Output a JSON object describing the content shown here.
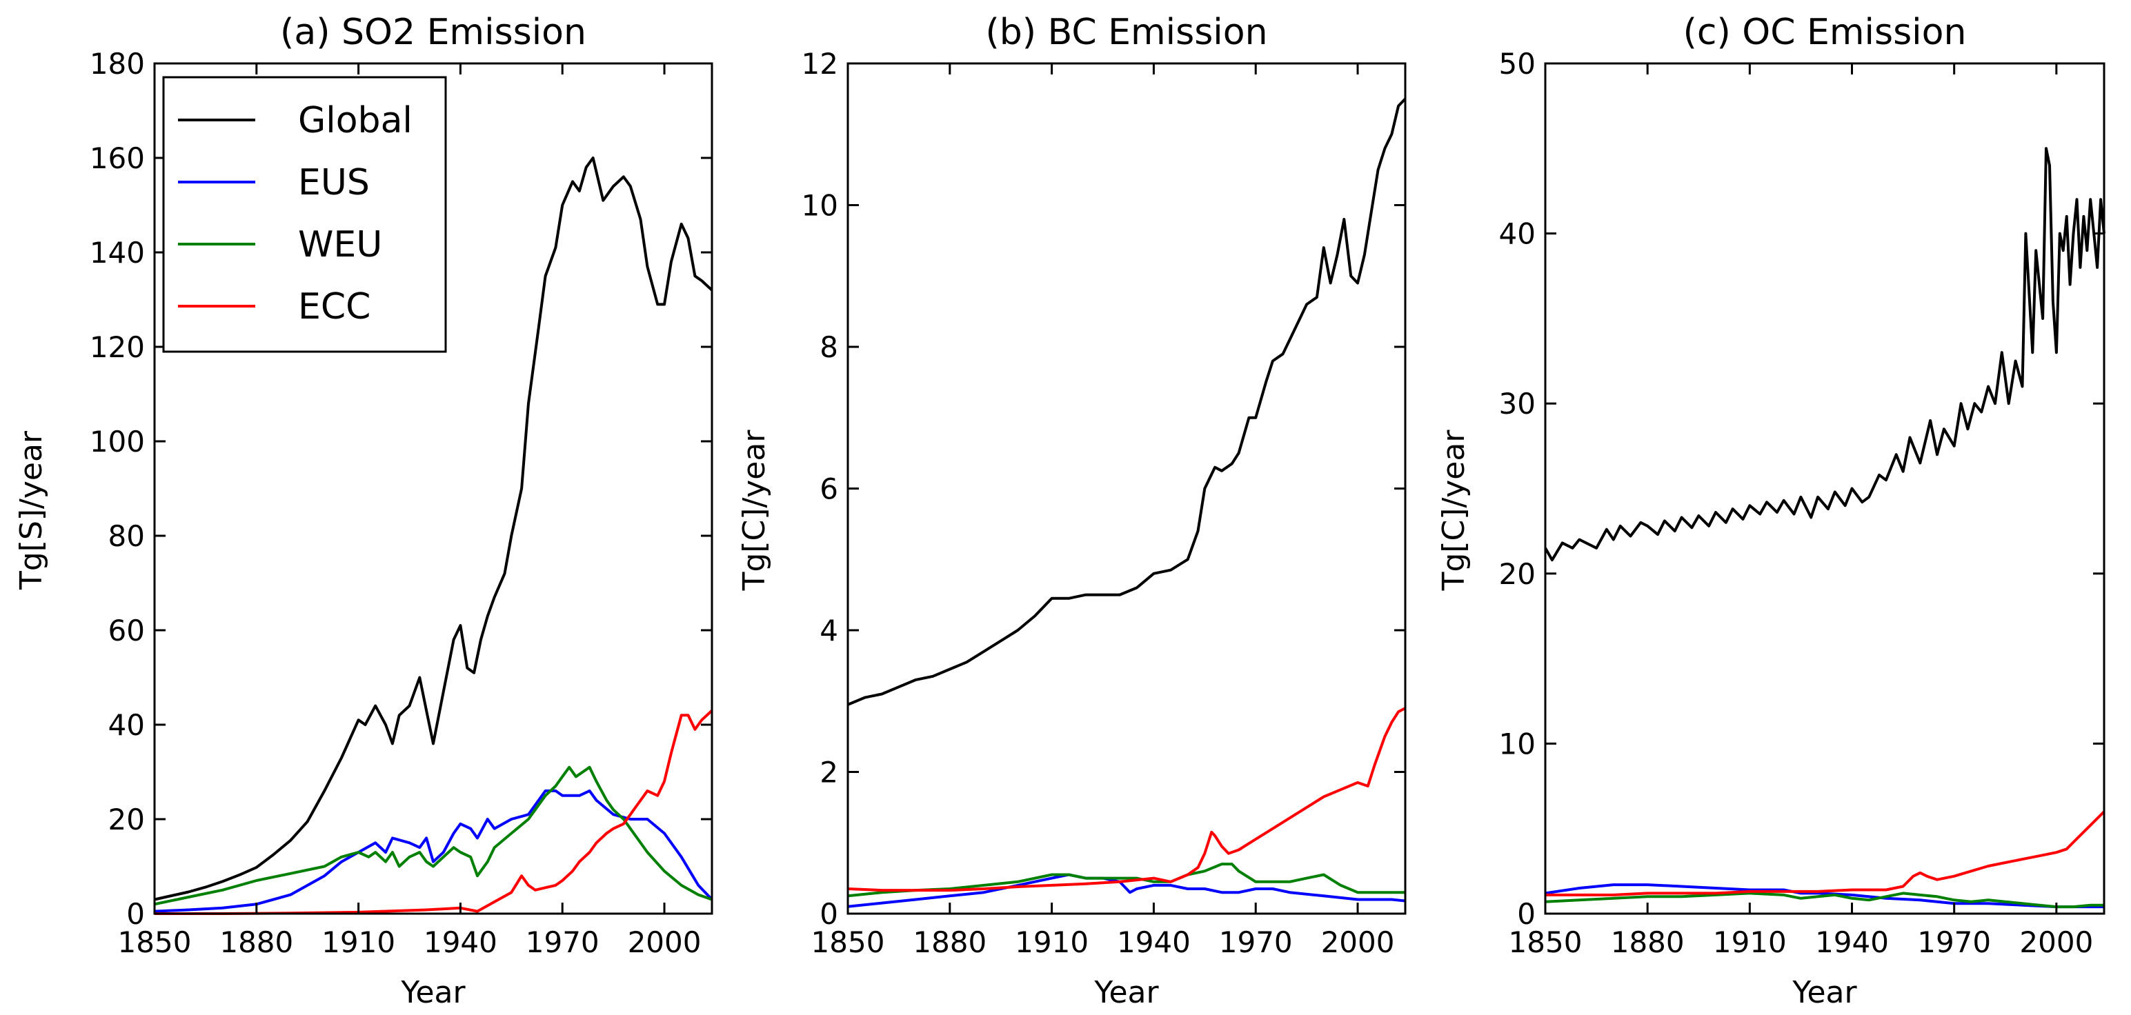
{
  "chart_data": [
    {
      "type": "line",
      "title": "(a) SO2 Emission",
      "xlabel": "Year",
      "ylabel": "Tg[S]/year",
      "xlim": [
        1850,
        2014
      ],
      "ylim": [
        0,
        180
      ],
      "xticks": [
        1850,
        1880,
        1910,
        1940,
        1970,
        2000
      ],
      "yticks": [
        0,
        20,
        40,
        60,
        80,
        100,
        120,
        140,
        160,
        180
      ],
      "grid": false,
      "legend": "top-left",
      "series": [
        {
          "name": "Global",
          "color": "#000000",
          "x": [
            1850,
            1855,
            1860,
            1865,
            1870,
            1875,
            1880,
            1885,
            1890,
            1895,
            1900,
            1905,
            1910,
            1912,
            1915,
            1918,
            1920,
            1922,
            1925,
            1928,
            1930,
            1932,
            1935,
            1938,
            1940,
            1942,
            1944,
            1946,
            1948,
            1950,
            1953,
            1955,
            1958,
            1960,
            1963,
            1965,
            1968,
            1970,
            1973,
            1975,
            1977,
            1979,
            1980,
            1982,
            1985,
            1988,
            1990,
            1993,
            1995,
            1998,
            2000,
            2002,
            2005,
            2007,
            2009,
            2011,
            2014
          ],
          "y": [
            3,
            3.8,
            4.6,
            5.6,
            6.8,
            8.2,
            9.8,
            12.5,
            15.5,
            19.5,
            26,
            33,
            41,
            40,
            44,
            40,
            36,
            42,
            44,
            50,
            43,
            36,
            47,
            58,
            61,
            52,
            51,
            58,
            63,
            67,
            72,
            80,
            90,
            108,
            124,
            135,
            141,
            150,
            155,
            153,
            158,
            160,
            157,
            151,
            154,
            156,
            154,
            147,
            137,
            129,
            129,
            138,
            146,
            143,
            135,
            134,
            132
          ]
        },
        {
          "name": "EUS",
          "color": "#0000ff",
          "x": [
            1850,
            1860,
            1870,
            1880,
            1890,
            1900,
            1905,
            1910,
            1915,
            1918,
            1920,
            1925,
            1928,
            1930,
            1932,
            1935,
            1938,
            1940,
            1943,
            1945,
            1948,
            1950,
            1955,
            1960,
            1965,
            1968,
            1970,
            1973,
            1975,
            1978,
            1980,
            1985,
            1990,
            1995,
            2000,
            2005,
            2010,
            2014
          ],
          "y": [
            0.5,
            0.8,
            1.2,
            2,
            4,
            8,
            11,
            13,
            15,
            13,
            16,
            15,
            14,
            16,
            11,
            13,
            17,
            19,
            18,
            16,
            20,
            18,
            20,
            21,
            26,
            26,
            25,
            25,
            25,
            26,
            24,
            21,
            20,
            20,
            17,
            12,
            6,
            3
          ]
        },
        {
          "name": "WEU",
          "color": "#008000",
          "x": [
            1850,
            1860,
            1870,
            1880,
            1890,
            1900,
            1905,
            1910,
            1913,
            1915,
            1918,
            1920,
            1922,
            1925,
            1928,
            1930,
            1932,
            1935,
            1938,
            1940,
            1943,
            1945,
            1948,
            1950,
            1955,
            1960,
            1965,
            1968,
            1970,
            1972,
            1974,
            1976,
            1978,
            1980,
            1983,
            1985,
            1988,
            1990,
            1995,
            2000,
            2005,
            2010,
            2014
          ],
          "y": [
            2,
            3.5,
            5,
            7,
            8.5,
            10,
            12,
            13,
            12,
            13,
            11,
            13,
            10,
            12,
            13,
            11,
            10,
            12,
            14,
            13,
            12,
            8,
            11,
            14,
            17,
            20,
            25,
            27,
            29,
            31,
            29,
            30,
            31,
            28,
            24,
            22,
            20,
            18,
            13,
            9,
            6,
            4,
            3
          ]
        },
        {
          "name": "ECC",
          "color": "#ff0000",
          "x": [
            1850,
            1870,
            1890,
            1910,
            1930,
            1940,
            1945,
            1950,
            1955,
            1958,
            1960,
            1962,
            1965,
            1968,
            1970,
            1973,
            1975,
            1978,
            1980,
            1983,
            1985,
            1988,
            1990,
            1992,
            1995,
            1998,
            2000,
            2002,
            2005,
            2007,
            2009,
            2011,
            2014
          ],
          "y": [
            0,
            0,
            0.1,
            0.3,
            0.8,
            1.2,
            0.5,
            2.5,
            4.5,
            8,
            6,
            5,
            5.5,
            6,
            7,
            9,
            11,
            13,
            15,
            17,
            18,
            19,
            21,
            23,
            26,
            25,
            28,
            34,
            42,
            42,
            39,
            41,
            43
          ]
        }
      ]
    },
    {
      "type": "line",
      "title": "(b) BC Emission",
      "xlabel": "Year",
      "ylabel": "Tg[C]/year",
      "xlim": [
        1850,
        2014
      ],
      "ylim": [
        0,
        12
      ],
      "xticks": [
        1850,
        1880,
        1910,
        1940,
        1970,
        2000
      ],
      "yticks": [
        0,
        2,
        4,
        6,
        8,
        10,
        12
      ],
      "grid": false,
      "series": [
        {
          "name": "Global",
          "color": "#000000",
          "x": [
            1850,
            1855,
            1860,
            1865,
            1870,
            1875,
            1880,
            1885,
            1890,
            1895,
            1900,
            1905,
            1910,
            1915,
            1920,
            1925,
            1930,
            1935,
            1940,
            1945,
            1950,
            1953,
            1955,
            1958,
            1960,
            1963,
            1965,
            1968,
            1970,
            1973,
            1975,
            1978,
            1980,
            1983,
            1985,
            1988,
            1990,
            1992,
            1994,
            1996,
            1998,
            2000,
            2002,
            2004,
            2006,
            2008,
            2010,
            2012,
            2014
          ],
          "y": [
            2.95,
            3.05,
            3.1,
            3.2,
            3.3,
            3.35,
            3.45,
            3.55,
            3.7,
            3.85,
            4.0,
            4.2,
            4.45,
            4.45,
            4.5,
            4.5,
            4.5,
            4.6,
            4.8,
            4.85,
            5.0,
            5.4,
            6.0,
            6.3,
            6.25,
            6.35,
            6.5,
            7.0,
            7.0,
            7.5,
            7.8,
            7.9,
            8.1,
            8.4,
            8.6,
            8.7,
            9.4,
            8.9,
            9.3,
            9.8,
            9.0,
            8.9,
            9.3,
            9.9,
            10.5,
            10.8,
            11.0,
            11.4,
            11.5
          ]
        },
        {
          "name": "EUS",
          "color": "#0000ff",
          "x": [
            1850,
            1860,
            1870,
            1880,
            1890,
            1900,
            1910,
            1915,
            1920,
            1925,
            1930,
            1933,
            1935,
            1940,
            1945,
            1950,
            1955,
            1960,
            1965,
            1970,
            1975,
            1980,
            1990,
            2000,
            2010,
            2014
          ],
          "y": [
            0.1,
            0.15,
            0.2,
            0.25,
            0.3,
            0.4,
            0.5,
            0.55,
            0.5,
            0.5,
            0.45,
            0.3,
            0.35,
            0.4,
            0.4,
            0.35,
            0.35,
            0.3,
            0.3,
            0.35,
            0.35,
            0.3,
            0.25,
            0.2,
            0.2,
            0.18
          ]
        },
        {
          "name": "WEU",
          "color": "#008000",
          "x": [
            1850,
            1860,
            1870,
            1880,
            1890,
            1900,
            1910,
            1915,
            1920,
            1925,
            1930,
            1935,
            1940,
            1945,
            1950,
            1955,
            1960,
            1963,
            1965,
            1970,
            1975,
            1980,
            1985,
            1990,
            1995,
            2000,
            2005,
            2010,
            2014
          ],
          "y": [
            0.25,
            0.3,
            0.33,
            0.35,
            0.4,
            0.45,
            0.55,
            0.55,
            0.5,
            0.5,
            0.5,
            0.5,
            0.45,
            0.45,
            0.55,
            0.6,
            0.7,
            0.7,
            0.6,
            0.45,
            0.45,
            0.45,
            0.5,
            0.55,
            0.4,
            0.3,
            0.3,
            0.3,
            0.3
          ]
        },
        {
          "name": "ECC",
          "color": "#ff0000",
          "x": [
            1850,
            1860,
            1870,
            1880,
            1890,
            1900,
            1910,
            1920,
            1930,
            1940,
            1945,
            1950,
            1953,
            1955,
            1957,
            1958,
            1960,
            1962,
            1965,
            1970,
            1975,
            1980,
            1985,
            1990,
            1995,
            2000,
            2003,
            2005,
            2008,
            2010,
            2012,
            2014
          ],
          "y": [
            0.35,
            0.33,
            0.33,
            0.33,
            0.35,
            0.38,
            0.4,
            0.42,
            0.45,
            0.5,
            0.45,
            0.55,
            0.65,
            0.85,
            1.15,
            1.1,
            0.95,
            0.85,
            0.9,
            1.05,
            1.2,
            1.35,
            1.5,
            1.65,
            1.75,
            1.85,
            1.8,
            2.1,
            2.5,
            2.7,
            2.85,
            2.9
          ]
        }
      ]
    },
    {
      "type": "line",
      "title": "(c) OC Emission",
      "xlabel": "Year",
      "ylabel": "Tg[C]/year",
      "xlim": [
        1850,
        2014
      ],
      "ylim": [
        0,
        50
      ],
      "xticks": [
        1850,
        1880,
        1910,
        1940,
        1970,
        2000
      ],
      "yticks": [
        0,
        10,
        20,
        30,
        40,
        50
      ],
      "grid": false,
      "series": [
        {
          "name": "Global",
          "color": "#000000",
          "x": [
            1850,
            1852,
            1855,
            1858,
            1860,
            1865,
            1868,
            1870,
            1872,
            1875,
            1878,
            1880,
            1883,
            1885,
            1888,
            1890,
            1893,
            1895,
            1898,
            1900,
            1903,
            1905,
            1908,
            1910,
            1913,
            1915,
            1918,
            1920,
            1923,
            1925,
            1928,
            1930,
            1933,
            1935,
            1938,
            1940,
            1943,
            1945,
            1948,
            1950,
            1953,
            1955,
            1957,
            1960,
            1963,
            1965,
            1967,
            1970,
            1972,
            1974,
            1976,
            1978,
            1980,
            1982,
            1984,
            1986,
            1988,
            1990,
            1991,
            1993,
            1994,
            1996,
            1997,
            1998,
            1999,
            2000,
            2001,
            2002,
            2003,
            2004,
            2005,
            2006,
            2007,
            2008,
            2009,
            2010,
            2011,
            2012,
            2013,
            2014
          ],
          "y": [
            21.5,
            20.8,
            21.8,
            21.5,
            22,
            21.5,
            22.6,
            22,
            22.8,
            22.2,
            23,
            22.8,
            22.3,
            23.1,
            22.5,
            23.3,
            22.7,
            23.4,
            22.8,
            23.6,
            23,
            23.8,
            23.2,
            24,
            23.5,
            24.2,
            23.6,
            24.3,
            23.5,
            24.5,
            23.3,
            24.5,
            23.8,
            24.8,
            24,
            25,
            24.2,
            24.5,
            25.8,
            25.5,
            27,
            26,
            28,
            26.5,
            29,
            27,
            28.5,
            27.5,
            30,
            28.5,
            30,
            29.5,
            31,
            30,
            33,
            30,
            32.5,
            31,
            40,
            33,
            39,
            35,
            45,
            44,
            36,
            33,
            40,
            39,
            41,
            37,
            40,
            42,
            38,
            41,
            39,
            42,
            40,
            38,
            42,
            40
          ]
        },
        {
          "name": "EUS",
          "color": "#0000ff",
          "x": [
            1850,
            1860,
            1870,
            1880,
            1890,
            1900,
            1910,
            1920,
            1925,
            1930,
            1940,
            1950,
            1960,
            1970,
            1980,
            1990,
            2000,
            2010,
            2014
          ],
          "y": [
            1.2,
            1.5,
            1.7,
            1.7,
            1.6,
            1.5,
            1.4,
            1.4,
            1.2,
            1.2,
            1.1,
            0.9,
            0.8,
            0.6,
            0.6,
            0.5,
            0.4,
            0.4,
            0.4
          ]
        },
        {
          "name": "WEU",
          "color": "#008000",
          "x": [
            1850,
            1860,
            1870,
            1880,
            1890,
            1900,
            1910,
            1920,
            1925,
            1930,
            1935,
            1940,
            1945,
            1950,
            1955,
            1960,
            1965,
            1970,
            1975,
            1980,
            1985,
            1990,
            1995,
            2000,
            2005,
            2010,
            2014
          ],
          "y": [
            0.7,
            0.8,
            0.9,
            1.0,
            1.0,
            1.1,
            1.2,
            1.1,
            0.9,
            1.0,
            1.1,
            0.9,
            0.8,
            1.0,
            1.2,
            1.1,
            1.0,
            0.8,
            0.7,
            0.8,
            0.7,
            0.6,
            0.5,
            0.4,
            0.4,
            0.5,
            0.5
          ]
        },
        {
          "name": "ECC",
          "color": "#ff0000",
          "x": [
            1850,
            1860,
            1870,
            1880,
            1890,
            1900,
            1910,
            1920,
            1930,
            1940,
            1950,
            1955,
            1958,
            1960,
            1962,
            1965,
            1970,
            1975,
            1980,
            1985,
            1990,
            1995,
            2000,
            2003,
            2005,
            2008,
            2010,
            2012,
            2014
          ],
          "y": [
            1.1,
            1.1,
            1.1,
            1.2,
            1.2,
            1.2,
            1.3,
            1.3,
            1.3,
            1.4,
            1.4,
            1.6,
            2.2,
            2.4,
            2.2,
            2.0,
            2.2,
            2.5,
            2.8,
            3.0,
            3.2,
            3.4,
            3.6,
            3.8,
            4.2,
            4.8,
            5.2,
            5.6,
            6.0
          ]
        }
      ]
    }
  ]
}
